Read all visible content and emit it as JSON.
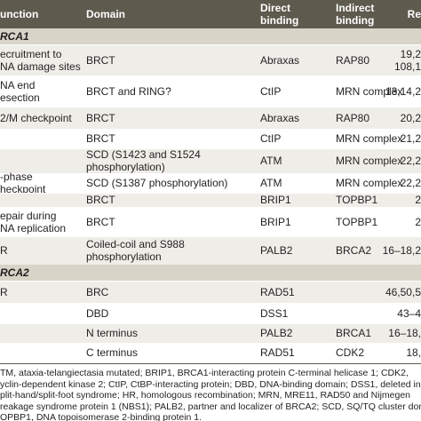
{
  "table": {
    "header": [
      "unction",
      "Domain",
      [
        "Direct",
        "binding"
      ],
      [
        "Indirect",
        "binding"
      ],
      "Re"
    ],
    "sections": [
      {
        "title": "RCA1",
        "rows": [
          [
            [
              "ecruitment to",
              "NA damage sites"
            ],
            "BRCT",
            "Abraxas",
            "RAP80",
            [
              "19,2",
              "108,1"
            ]
          ],
          [
            [
              "NA end",
              "esection"
            ],
            "BRCT and RING?",
            "CtIP",
            "MRN complex",
            "13,14,2"
          ],
          [
            "2/M checkpoint",
            "BRCT",
            "Abraxas",
            "RAP80",
            "20,2"
          ],
          [
            null,
            "BRCT",
            "CtIP",
            "MRN complex",
            "21,2"
          ],
          [
            null,
            [
              "SCD (S1423 and S1524",
              "phosphorylation)"
            ],
            "ATM",
            "MRN complex",
            "22,2"
          ],
          [
            [
              "-phase",
              "heckpoint"
            ],
            "SCD (S1387 phosphorylation)",
            "ATM",
            "MRN complex",
            "22,2"
          ],
          [
            null,
            "BRCT",
            "BRIP1",
            "TOPBP1",
            "2"
          ],
          [
            [
              "epair during",
              "NA replication"
            ],
            "BRCT",
            "BRIP1",
            "TOPBP1",
            "2"
          ],
          [
            "R",
            [
              "Coiled-coil and S988",
              "phosphorylation"
            ],
            "PALB2",
            "BRCA2",
            "16–18,2"
          ]
        ]
      },
      {
        "title": "RCA2",
        "rows": [
          [
            "R",
            "BRC",
            "RAD51",
            null,
            "46,50,5"
          ],
          [
            null,
            "DBD",
            "DSS1",
            null,
            "43–4"
          ],
          [
            null,
            "N terminus",
            "PALB2",
            "BRCA1",
            "16–18,"
          ],
          [
            null,
            "C terminus",
            "RAD51",
            "CDK2",
            "18,"
          ]
        ]
      }
    ],
    "footnote": [
      "TM, ataxia-telangiectasia mutated; BRIP1, BRCA1-interacting protein C-terminal helicase 1; CDK2,",
      "yclin-dependent kinase 2; CtIP, CtBP-interacting protein; DBD, DNA-binding domain; DSS1, deleted in",
      "plit-hand/split-foot syndrome; HR, homologous recombination; MRN, MRE11, RAD50 and Nijmegen",
      "reakage syndrome protein 1 (NBS1); PALB2, partner and localizer of BRCA2; SCD, SQ/TQ cluster domain;",
      "OPBP1, DNA topoisomerase 2-binding protein 1."
    ]
  }
}
